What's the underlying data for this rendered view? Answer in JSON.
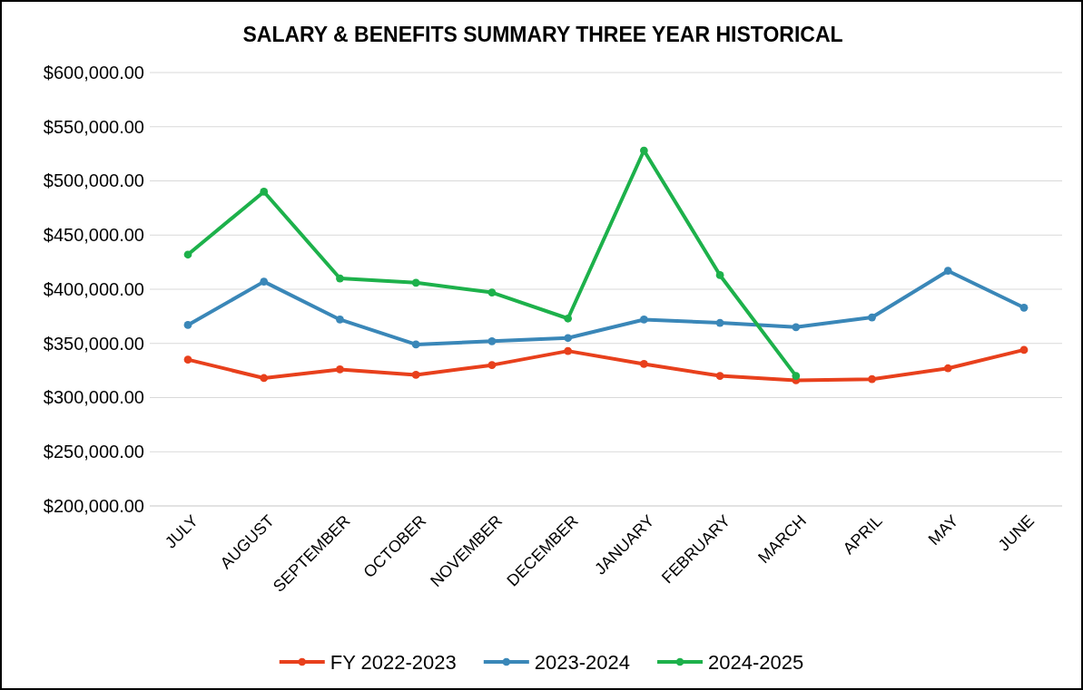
{
  "chart_data": {
    "type": "line",
    "title": "SALARY & BENEFITS SUMMARY THREE  YEAR HISTORICAL",
    "categories": [
      "JULY",
      "AUGUST",
      "SEPTEMBER",
      "OCTOBER",
      "NOVEMBER",
      "DECEMBER",
      "JANUARY",
      "FEBRUARY",
      "MARCH",
      "APRIL",
      "MAY",
      "JUNE"
    ],
    "series": [
      {
        "name": "FY 2022-2023",
        "color": "#e8401c",
        "values": [
          335000,
          318000,
          326000,
          321000,
          330000,
          343000,
          331000,
          320000,
          316000,
          317000,
          327000,
          344000
        ]
      },
      {
        "name": "2023-2024",
        "color": "#3a87b8",
        "values": [
          367000,
          407000,
          372000,
          349000,
          352000,
          355000,
          372000,
          369000,
          365000,
          374000,
          417000,
          383000
        ]
      },
      {
        "name": "2024-2025",
        "color": "#1db14b",
        "values": [
          432000,
          490000,
          410000,
          406000,
          397000,
          373000,
          528000,
          413000,
          320000,
          null,
          null,
          null
        ]
      }
    ],
    "ylim": [
      200000,
      600000
    ],
    "yticks": [
      {
        "value": 200000,
        "label": "$200,000.00"
      },
      {
        "value": 250000,
        "label": "$250,000.00"
      },
      {
        "value": 300000,
        "label": "$300,000.00"
      },
      {
        "value": 350000,
        "label": "$350,000.00"
      },
      {
        "value": 400000,
        "label": "$400,000.00"
      },
      {
        "value": 450000,
        "label": "$450,000.00"
      },
      {
        "value": 500000,
        "label": "$500,000.00"
      },
      {
        "value": 550000,
        "label": "$550,000.00"
      },
      {
        "value": 600000,
        "label": "$600,000.00"
      }
    ],
    "grid": "y",
    "legend": "bottom",
    "marker": "circle",
    "line_style": "solid"
  }
}
